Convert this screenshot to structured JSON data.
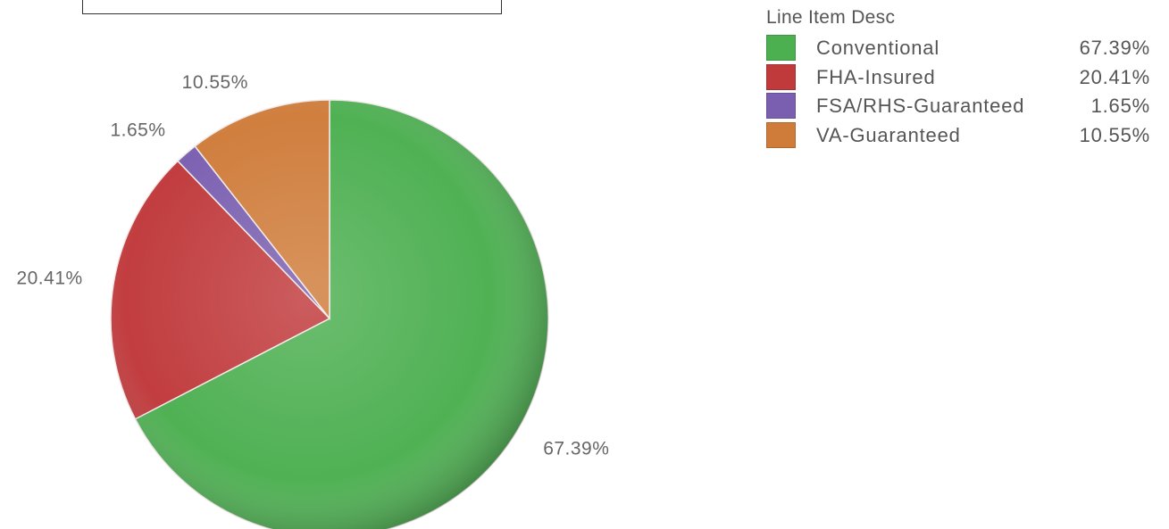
{
  "chart_data": {
    "type": "pie",
    "legend": {
      "title": "Line Item Desc",
      "placement": "top-right"
    },
    "slices": [
      {
        "name": "Conventional",
        "value": 67.39,
        "label": "67.39%",
        "legend_value": "67.39%",
        "color": "#4caf50"
      },
      {
        "name": "FHA-Insured",
        "value": 20.41,
        "label": "20.41%",
        "legend_value": "20.41%",
        "color": "#c0393b"
      },
      {
        "name": "FSA/RHS-Guaranteed",
        "value": 1.65,
        "label": "1.65%",
        "legend_value": "1.65%",
        "color": "#7a5fb0"
      },
      {
        "name": "VA-Guaranteed",
        "value": 10.55,
        "label": "10.55%",
        "legend_value": "10.55%",
        "color": "#cf7c3a"
      }
    ]
  }
}
